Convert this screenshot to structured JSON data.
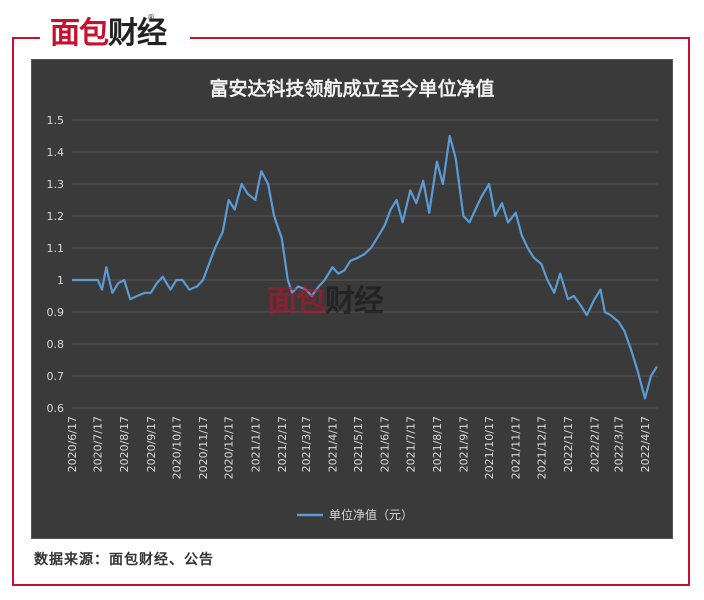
{
  "logo": {
    "part1": "面包",
    "part2": "财经",
    "registered": "®"
  },
  "watermark": {
    "part1": "面包",
    "part2": "财经"
  },
  "source_text": "数据来源：面包财经、公告",
  "colors": {
    "brand_red": "#c8102e",
    "panel_bg": "#3a3a3a",
    "line": "#5b9bd5",
    "grid": "#555555",
    "text": "#d9d9d9"
  },
  "chart_data": {
    "type": "line",
    "title": "富安达科技领航成立至今单位净值",
    "xlabel": "",
    "ylabel": "",
    "ylim": [
      0.6,
      1.5
    ],
    "yticks": [
      "0.6",
      "0.7",
      "0.8",
      "0.9",
      "1",
      "1.1",
      "1.2",
      "1.3",
      "1.4",
      "1.5"
    ],
    "xticks": [
      "2020/6/17",
      "2020/7/17",
      "2020/8/17",
      "2020/9/17",
      "2020/10/17",
      "2020/11/17",
      "2020/12/17",
      "2021/1/17",
      "2021/2/17",
      "2021/3/17",
      "2021/4/17",
      "2021/5/17",
      "2021/6/17",
      "2021/7/17",
      "2021/8/17",
      "2021/9/17",
      "2021/10/17",
      "2021/11/17",
      "2021/12/17",
      "2022/1/17",
      "2022/2/17",
      "2022/3/17",
      "2022/4/17"
    ],
    "legend": {
      "position": "bottom"
    },
    "grid": true,
    "series": [
      {
        "name": "单位净值（元）",
        "x": [
          "2020/6/17",
          "2020/7/1",
          "2020/7/17",
          "2020/7/22",
          "2020/7/27",
          "2020/8/3",
          "2020/8/10",
          "2020/8/17",
          "2020/8/24",
          "2020/9/1",
          "2020/9/10",
          "2020/9/17",
          "2020/9/24",
          "2020/10/1",
          "2020/10/10",
          "2020/10/17",
          "2020/10/24",
          "2020/11/1",
          "2020/11/10",
          "2020/11/17",
          "2020/11/24",
          "2020/12/1",
          "2020/12/10",
          "2020/12/17",
          "2020/12/24",
          "2021/1/1",
          "2021/1/8",
          "2021/1/17",
          "2021/1/24",
          "2021/2/1",
          "2021/2/8",
          "2021/2/17",
          "2021/2/24",
          "2021/3/1",
          "2021/3/8",
          "2021/3/17",
          "2021/3/24",
          "2021/4/1",
          "2021/4/8",
          "2021/4/17",
          "2021/4/24",
          "2021/5/1",
          "2021/5/8",
          "2021/5/17",
          "2021/5/24",
          "2021/6/1",
          "2021/6/8",
          "2021/6/17",
          "2021/6/24",
          "2021/7/1",
          "2021/7/8",
          "2021/7/17",
          "2021/7/24",
          "2021/8/1",
          "2021/8/8",
          "2021/8/17",
          "2021/8/24",
          "2021/9/1",
          "2021/9/8",
          "2021/9/17",
          "2021/9/24",
          "2021/10/1",
          "2021/10/8",
          "2021/10/17",
          "2021/10/24",
          "2021/11/1",
          "2021/11/8",
          "2021/11/17",
          "2021/11/24",
          "2021/12/1",
          "2021/12/8",
          "2021/12/17",
          "2021/12/24",
          "2022/1/1",
          "2022/1/8",
          "2022/1/17",
          "2022/1/24",
          "2022/2/1",
          "2022/2/8",
          "2022/2/17",
          "2022/2/24",
          "2022/3/1",
          "2022/3/8",
          "2022/3/17",
          "2022/3/24",
          "2022/4/1",
          "2022/4/8",
          "2022/4/17",
          "2022/4/24",
          "2022/5/1"
        ],
        "values": [
          1.0,
          1.0,
          1.0,
          0.97,
          1.04,
          0.96,
          0.99,
          1.0,
          0.94,
          0.95,
          0.96,
          0.96,
          0.99,
          1.01,
          0.97,
          1.0,
          1.0,
          0.97,
          0.98,
          1.0,
          1.05,
          1.1,
          1.15,
          1.25,
          1.22,
          1.3,
          1.27,
          1.25,
          1.34,
          1.3,
          1.2,
          1.13,
          1.0,
          0.96,
          0.98,
          0.97,
          0.95,
          0.98,
          1.0,
          1.04,
          1.02,
          1.03,
          1.06,
          1.07,
          1.08,
          1.1,
          1.13,
          1.17,
          1.22,
          1.25,
          1.18,
          1.28,
          1.24,
          1.31,
          1.21,
          1.37,
          1.3,
          1.45,
          1.38,
          1.2,
          1.18,
          1.22,
          1.26,
          1.3,
          1.2,
          1.24,
          1.18,
          1.21,
          1.14,
          1.1,
          1.07,
          1.05,
          1.0,
          0.96,
          1.02,
          0.94,
          0.95,
          0.92,
          0.89,
          0.94,
          0.97,
          0.9,
          0.89,
          0.87,
          0.84,
          0.78,
          0.72,
          0.63,
          0.7,
          0.73
        ]
      }
    ]
  }
}
